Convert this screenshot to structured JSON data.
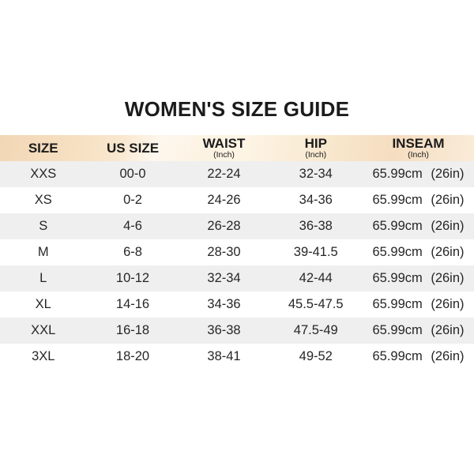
{
  "title": "WOMEN'S SIZE GUIDE",
  "colors": {
    "header_peach_dark": "#f2d7b5",
    "header_peach_light": "#fdf4e5",
    "row_alt_gray": "#efefef",
    "text": "#1f1f1f"
  },
  "chart_data": {
    "type": "table",
    "title": "WOMEN'S SIZE GUIDE",
    "columns": [
      {
        "label": "SIZE",
        "sub": ""
      },
      {
        "label": "US SIZE",
        "sub": ""
      },
      {
        "label": "WAIST",
        "sub": "(Inch)"
      },
      {
        "label": "HIP",
        "sub": "(Inch)"
      },
      {
        "label": "INSEAM",
        "sub": "(Inch)"
      }
    ],
    "rows": [
      {
        "size": "XXS",
        "us_size": "00-0",
        "waist": "22-24",
        "hip": "32-34",
        "inseam": "65.99cm (26in)"
      },
      {
        "size": "XS",
        "us_size": "0-2",
        "waist": "24-26",
        "hip": "34-36",
        "inseam": "65.99cm (26in)"
      },
      {
        "size": "S",
        "us_size": "4-6",
        "waist": "26-28",
        "hip": "36-38",
        "inseam": "65.99cm (26in)"
      },
      {
        "size": "M",
        "us_size": "6-8",
        "waist": "28-30",
        "hip": "39-41.5",
        "inseam": "65.99cm (26in)"
      },
      {
        "size": "L",
        "us_size": "10-12",
        "waist": "32-34",
        "hip": "42-44",
        "inseam": "65.99cm (26in)"
      },
      {
        "size": "XL",
        "us_size": "14-16",
        "waist": "34-36",
        "hip": "45.5-47.5",
        "inseam": "65.99cm (26in)"
      },
      {
        "size": "XXL",
        "us_size": "16-18",
        "waist": "36-38",
        "hip": "47.5-49",
        "inseam": "65.99cm (26in)"
      },
      {
        "size": "3XL",
        "us_size": "18-20",
        "waist": "38-41",
        "hip": "49-52",
        "inseam": "65.99cm (26in)"
      }
    ]
  }
}
